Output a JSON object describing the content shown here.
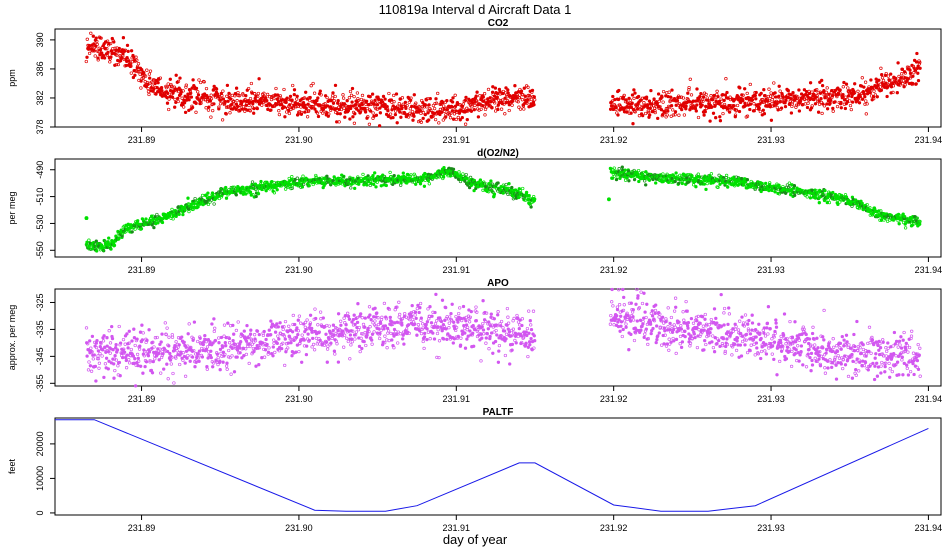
{
  "figure": {
    "title": "110819a   Interval d Aircraft Data 1",
    "xlabel": "day of year"
  },
  "chart_data": [
    {
      "type": "scatter",
      "title": "CO2",
      "ylabel": "ppm",
      "color": "#e00000",
      "xlim": [
        231.8845,
        231.9408
      ],
      "ylim": [
        378,
        391.5
      ],
      "xticks": [
        231.89,
        231.9,
        231.91,
        231.92,
        231.93,
        231.94
      ],
      "xtick_labels": [
        "231.89",
        "231.90",
        "231.91",
        "231.92",
        "231.93",
        "231.94"
      ],
      "yticks": [
        378,
        382,
        386,
        390
      ],
      "ytick_labels": [
        "378",
        "382",
        "386",
        "390"
      ],
      "trend_segments": [
        {
          "x": [
            231.8865,
            231.8875,
            231.8885,
            231.89,
            231.8915,
            231.895,
            231.9,
            231.905,
            231.909,
            231.9105,
            231.912,
            231.915
          ],
          "y": [
            389.5,
            389.0,
            388.5,
            385.0,
            382.8,
            381.8,
            381.2,
            380.8,
            380.4,
            380.6,
            381.8,
            382.2
          ]
        },
        {
          "x": [
            231.9198,
            231.923,
            231.927,
            231.931,
            231.934,
            231.9362,
            231.9375,
            231.9395
          ],
          "y": [
            381.0,
            380.9,
            381.2,
            381.8,
            382.0,
            382.5,
            384.2,
            385.8
          ]
        }
      ],
      "scatter_sd": 0.9
    },
    {
      "type": "scatter",
      "title": "d(O2/N2)",
      "ylabel": "per meg",
      "color": "#00e000",
      "color2": "#1a8c1a",
      "xlim": [
        231.8845,
        231.9408
      ],
      "ylim": [
        -555,
        -482
      ],
      "xticks": [
        231.89,
        231.9,
        231.91,
        231.92,
        231.93,
        231.94
      ],
      "xtick_labels": [
        "231.89",
        "231.90",
        "231.91",
        "231.92",
        "231.93",
        "231.94"
      ],
      "yticks": [
        -550,
        -530,
        -510,
        -490
      ],
      "ytick_labels": [
        "-550",
        "-530",
        "-510",
        "-490"
      ],
      "trend_segments": [
        {
          "x": [
            231.8865,
            231.888,
            231.889,
            231.891,
            231.895,
            231.9,
            231.905,
            231.908,
            231.9095,
            231.911,
            231.913,
            231.915
          ],
          "y": [
            -547,
            -546,
            -534,
            -527,
            -508,
            -499,
            -498,
            -497,
            -491,
            -500,
            -505,
            -512
          ]
        },
        {
          "x": [
            231.9198,
            231.923,
            231.927,
            231.93,
            231.934,
            231.9355,
            231.937,
            231.9395
          ],
          "y": [
            -492,
            -496,
            -498,
            -503,
            -510,
            -515,
            -524,
            -529
          ]
        }
      ],
      "isolated_points": [
        {
          "x": 231.8865,
          "y": -526
        },
        {
          "x": 231.9197,
          "y": -512
        }
      ],
      "scatter_sd": 2.0
    },
    {
      "type": "scatter",
      "title": "APO",
      "ylabel": "approx. per meg",
      "color": "#d257f0",
      "xlim": [
        231.8845,
        231.9408
      ],
      "ylim": [
        -356,
        -320
      ],
      "xticks": [
        231.89,
        231.9,
        231.91,
        231.92,
        231.93,
        231.94
      ],
      "xtick_labels": [
        "231.89",
        "231.90",
        "231.91",
        "231.92",
        "231.93",
        "231.94"
      ],
      "yticks": [
        -355,
        -345,
        -335,
        -325
      ],
      "ytick_labels": [
        "-355",
        "-345",
        "-335",
        "-325"
      ],
      "trend_segments": [
        {
          "x": [
            231.8865,
            231.89,
            231.895,
            231.9,
            231.905,
            231.91,
            231.915
          ],
          "y": [
            -344,
            -343,
            -342,
            -337,
            -334,
            -333,
            -338
          ]
        },
        {
          "x": [
            231.9198,
            231.923,
            231.927,
            231.93,
            231.934,
            231.9395
          ],
          "y": [
            -329,
            -334,
            -336,
            -338,
            -344,
            -345
          ]
        }
      ],
      "scatter_sd": 4.0
    },
    {
      "type": "line",
      "title": "PALTF",
      "ylabel": "feet",
      "color": "#1818e8",
      "xlim": [
        231.8845,
        231.9408
      ],
      "ylim": [
        -600,
        27500
      ],
      "xticks": [
        231.89,
        231.9,
        231.91,
        231.92,
        231.93,
        231.94
      ],
      "xtick_labels": [
        "231.89",
        "231.90",
        "231.91",
        "231.92",
        "231.93",
        "231.94"
      ],
      "yticks": [
        0,
        10000,
        20000
      ],
      "ytick_labels": [
        "0",
        "10000",
        "20000"
      ],
      "x": [
        231.8845,
        231.887,
        231.901,
        231.903,
        231.9055,
        231.9075,
        231.914,
        231.915,
        231.92,
        231.923,
        231.926,
        231.929,
        231.94
      ],
      "y": [
        27000,
        27000,
        800,
        500,
        500,
        2100,
        14500,
        14500,
        2300,
        500,
        500,
        2100,
        24500
      ]
    }
  ]
}
